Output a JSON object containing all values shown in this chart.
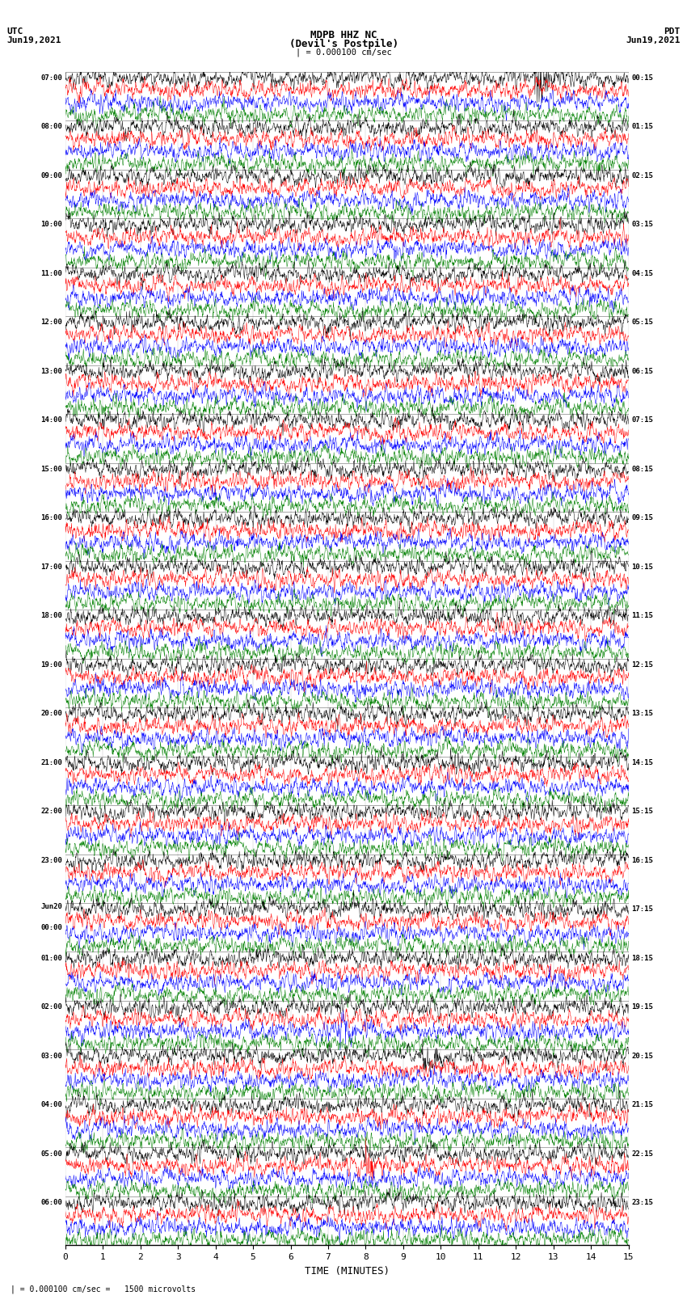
{
  "title_line1": "MDPB HHZ NC",
  "title_line2": "(Devil's Postpile)",
  "scale_text": "| = 0.000100 cm/sec",
  "footer_text": "| = 0.000100 cm/sec =   1500 microvolts",
  "left_header": "UTC",
  "left_date": "Jun19,2021",
  "right_header": "PDT",
  "right_date": "Jun19,2021",
  "xlabel": "TIME (MINUTES)",
  "xlim": [
    0,
    15
  ],
  "xticks": [
    0,
    1,
    2,
    3,
    4,
    5,
    6,
    7,
    8,
    9,
    10,
    11,
    12,
    13,
    14,
    15
  ],
  "fig_width": 8.5,
  "fig_height": 16.13,
  "dpi": 100,
  "background_color": "#ffffff",
  "trace_colors": [
    "black",
    "red",
    "blue",
    "green"
  ],
  "hour_groups": [
    {
      "label_left": "07:00",
      "label_right": "00:15"
    },
    {
      "label_left": "08:00",
      "label_right": "01:15"
    },
    {
      "label_left": "09:00",
      "label_right": "02:15"
    },
    {
      "label_left": "10:00",
      "label_right": "03:15"
    },
    {
      "label_left": "11:00",
      "label_right": "04:15"
    },
    {
      "label_left": "12:00",
      "label_right": "05:15"
    },
    {
      "label_left": "13:00",
      "label_right": "06:15"
    },
    {
      "label_left": "14:00",
      "label_right": "07:15"
    },
    {
      "label_left": "15:00",
      "label_right": "08:15"
    },
    {
      "label_left": "16:00",
      "label_right": "09:15"
    },
    {
      "label_left": "17:00",
      "label_right": "10:15"
    },
    {
      "label_left": "18:00",
      "label_right": "11:15"
    },
    {
      "label_left": "19:00",
      "label_right": "12:15"
    },
    {
      "label_left": "20:00",
      "label_right": "13:15"
    },
    {
      "label_left": "21:00",
      "label_right": "14:15"
    },
    {
      "label_left": "22:00",
      "label_right": "15:15"
    },
    {
      "label_left": "23:00",
      "label_right": "16:15"
    },
    {
      "label_left": "Jun20\n00:00",
      "label_right": "17:15"
    },
    {
      "label_left": "01:00",
      "label_right": "18:15"
    },
    {
      "label_left": "02:00",
      "label_right": "19:15"
    },
    {
      "label_left": "03:00",
      "label_right": "20:15"
    },
    {
      "label_left": "04:00",
      "label_right": "21:15"
    },
    {
      "label_left": "05:00",
      "label_right": "22:15"
    },
    {
      "label_left": "06:00",
      "label_right": "23:15"
    }
  ],
  "num_groups": 24,
  "traces_per_group": 4,
  "N_points": 1800,
  "trace_amp": 0.35,
  "linewidth": 0.35
}
